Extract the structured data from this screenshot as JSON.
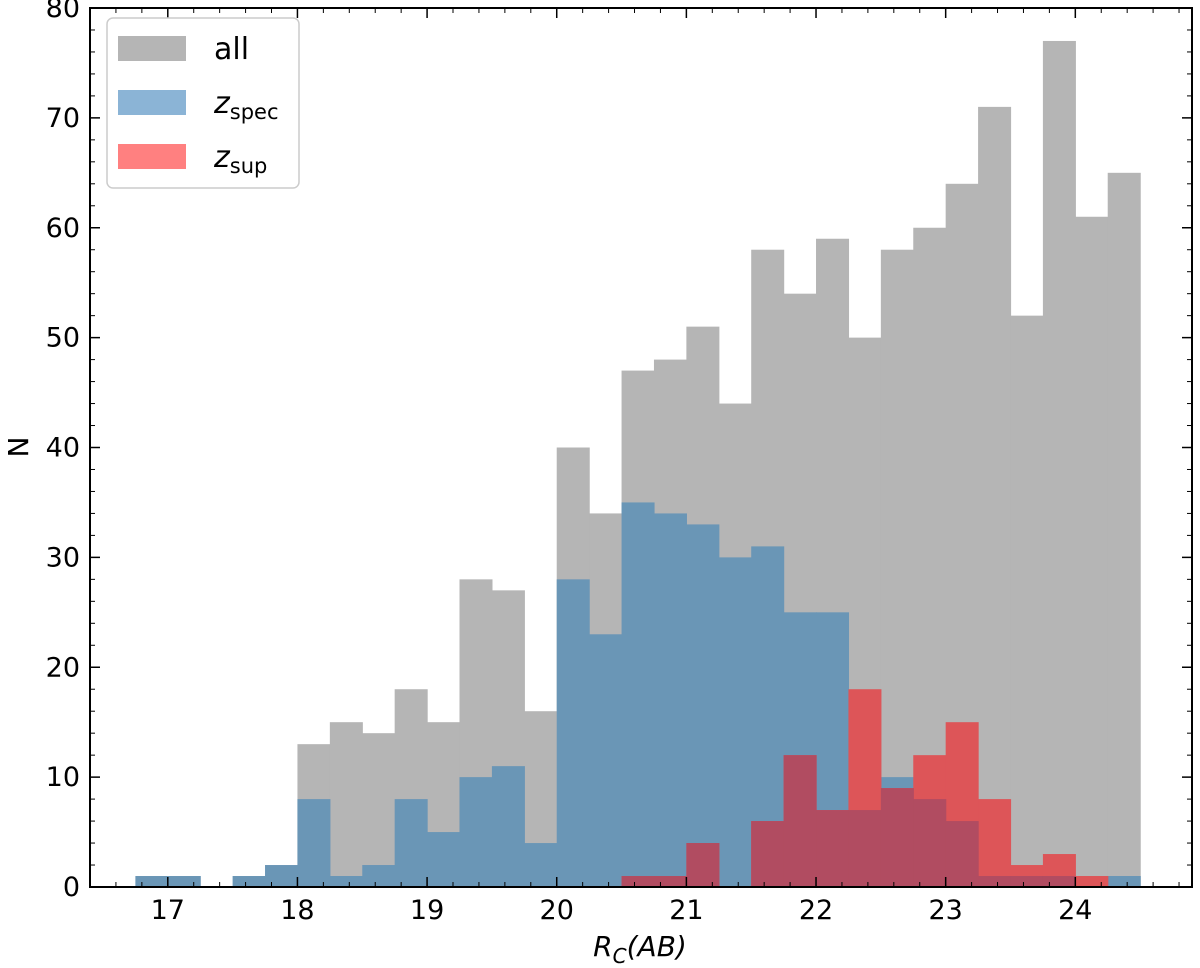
{
  "chart_data": {
    "type": "bar",
    "subtype": "histogram",
    "xlabel": "R_C(AB)",
    "ylabel": "N",
    "xlim": [
      16.4,
      24.9
    ],
    "ylim": [
      0,
      80
    ],
    "bin_width": 0.25,
    "bin_start": 16.75,
    "xticks": [
      "17",
      "18",
      "19",
      "20",
      "21",
      "22",
      "23",
      "24"
    ],
    "yticks": [
      "0",
      "10",
      "20",
      "30",
      "40",
      "50",
      "60",
      "70",
      "80"
    ],
    "grid": false,
    "legend_position": "top-left",
    "series": [
      {
        "name": "all",
        "color": "#b5b5b5",
        "values": [
          0,
          0,
          0,
          0,
          0,
          13,
          15,
          14,
          18,
          15,
          28,
          27,
          16,
          40,
          34,
          47,
          48,
          51,
          44,
          58,
          54,
          59,
          50,
          58,
          60,
          64,
          71,
          52,
          77,
          61,
          65
        ]
      },
      {
        "name": "z_spec",
        "color": "#6a96b6",
        "values": [
          1,
          1,
          0,
          1,
          2,
          8,
          1,
          2,
          8,
          5,
          10,
          11,
          4,
          28,
          23,
          35,
          34,
          33,
          30,
          31,
          25,
          25,
          7,
          10,
          8,
          6,
          1,
          1,
          1,
          0,
          1
        ]
      },
      {
        "name": "z_sup",
        "color": "#dd5558",
        "values": [
          0,
          0,
          0,
          0,
          0,
          0,
          0,
          0,
          0,
          0,
          0,
          0,
          0,
          0,
          0,
          1,
          1,
          4,
          0,
          6,
          12,
          7,
          18,
          9,
          12,
          15,
          8,
          2,
          3,
          1,
          0
        ]
      }
    ],
    "legend": [
      {
        "key": "all",
        "main": "all",
        "sub": ""
      },
      {
        "key": "z_spec",
        "main": "z",
        "sub": "spec"
      },
      {
        "key": "z_sup",
        "main": "z",
        "sub": "sup"
      }
    ],
    "legend_swatch_colors": [
      "#b5b5b5",
      "#8bb4d6",
      "#ff8080"
    ],
    "overlap_colors": {
      "spec_sup": "#b14c61",
      "all_sup": "#dd5558"
    }
  },
  "axis_label_parts": {
    "x_main": "R",
    "x_sub": "C",
    "x_rest": "(AB)",
    "y": "N"
  }
}
